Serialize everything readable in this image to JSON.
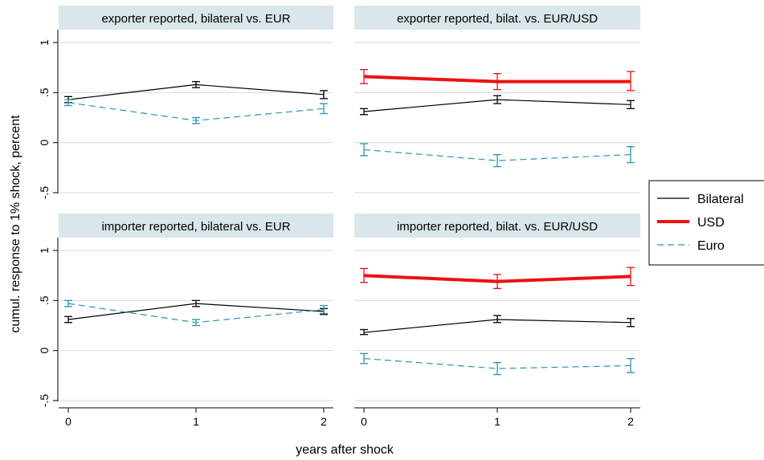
{
  "chart_data": {
    "type": "line",
    "xlabel": "years after shock",
    "ylabel": "cumul. response to 1% shock, percent",
    "x_ticks": [
      "0",
      "1",
      "2"
    ],
    "y_ticks": [
      {
        "value": 1,
        "label": "1"
      },
      {
        "value": 0.5,
        "label": ".5"
      },
      {
        "value": 0,
        "label": "0"
      },
      {
        "value": -0.5,
        "label": "-.5"
      }
    ],
    "xlim": [
      -0.05,
      2.05
    ],
    "ylim": [
      -0.5,
      1.0
    ],
    "grid": true,
    "legend": {
      "placement": "right",
      "entries": [
        {
          "key": "bilateral",
          "label": "Bilateral"
        },
        {
          "key": "usd",
          "label": "USD"
        },
        {
          "key": "euro",
          "label": "Euro"
        }
      ]
    },
    "styles": {
      "bilateral": {
        "color": "#000000",
        "width": 1.2,
        "dash": ""
      },
      "usd": {
        "color": "#ee1111",
        "width": 4,
        "dash": ""
      },
      "euro": {
        "color": "#2a93b6",
        "width": 1.2,
        "dash": "8,5"
      }
    },
    "panels": [
      {
        "title": "exporter reported, bilateral vs. EUR",
        "series": [
          {
            "key": "bilateral",
            "x": [
              0,
              1,
              2
            ],
            "y": [
              0.43,
              0.58,
              0.48
            ],
            "ci": [
              [
                0.4,
                0.46
              ],
              [
                0.55,
                0.61
              ],
              [
                0.44,
                0.52
              ]
            ]
          },
          {
            "key": "euro",
            "x": [
              0,
              1,
              2
            ],
            "y": [
              0.4,
              0.22,
              0.34
            ],
            "ci": [
              [
                0.37,
                0.43
              ],
              [
                0.19,
                0.25
              ],
              [
                0.29,
                0.39
              ]
            ]
          }
        ]
      },
      {
        "title": "exporter reported, bilat. vs. EUR/USD",
        "series": [
          {
            "key": "usd",
            "x": [
              0,
              1,
              2
            ],
            "y": [
              0.66,
              0.61,
              0.61
            ],
            "ci": [
              [
                0.59,
                0.73
              ],
              [
                0.53,
                0.69
              ],
              [
                0.52,
                0.71
              ]
            ]
          },
          {
            "key": "bilateral",
            "x": [
              0,
              1,
              2
            ],
            "y": [
              0.31,
              0.43,
              0.38
            ],
            "ci": [
              [
                0.28,
                0.34
              ],
              [
                0.39,
                0.47
              ],
              [
                0.34,
                0.42
              ]
            ]
          },
          {
            "key": "euro",
            "x": [
              0,
              1,
              2
            ],
            "y": [
              -0.07,
              -0.18,
              -0.12
            ],
            "ci": [
              [
                -0.13,
                -0.01
              ],
              [
                -0.24,
                -0.12
              ],
              [
                -0.2,
                -0.04
              ]
            ]
          }
        ]
      },
      {
        "title": "importer reported, bilateral vs. EUR",
        "series": [
          {
            "key": "bilateral",
            "x": [
              0,
              1,
              2
            ],
            "y": [
              0.31,
              0.47,
              0.39
            ],
            "ci": [
              [
                0.28,
                0.34
              ],
              [
                0.44,
                0.5
              ],
              [
                0.36,
                0.42
              ]
            ]
          },
          {
            "key": "euro",
            "x": [
              0,
              1,
              2
            ],
            "y": [
              0.47,
              0.28,
              0.41
            ],
            "ci": [
              [
                0.44,
                0.5
              ],
              [
                0.25,
                0.31
              ],
              [
                0.37,
                0.45
              ]
            ]
          }
        ]
      },
      {
        "title": "importer reported, bilat. vs. EUR/USD",
        "series": [
          {
            "key": "usd",
            "x": [
              0,
              1,
              2
            ],
            "y": [
              0.75,
              0.69,
              0.74
            ],
            "ci": [
              [
                0.68,
                0.82
              ],
              [
                0.62,
                0.76
              ],
              [
                0.65,
                0.83
              ]
            ]
          },
          {
            "key": "bilateral",
            "x": [
              0,
              1,
              2
            ],
            "y": [
              0.18,
              0.31,
              0.28
            ],
            "ci": [
              [
                0.16,
                0.21
              ],
              [
                0.28,
                0.35
              ],
              [
                0.24,
                0.32
              ]
            ]
          },
          {
            "key": "euro",
            "x": [
              0,
              1,
              2
            ],
            "y": [
              -0.08,
              -0.18,
              -0.15
            ],
            "ci": [
              [
                -0.13,
                -0.03
              ],
              [
                -0.24,
                -0.12
              ],
              [
                -0.22,
                -0.08
              ]
            ]
          }
        ]
      }
    ]
  }
}
